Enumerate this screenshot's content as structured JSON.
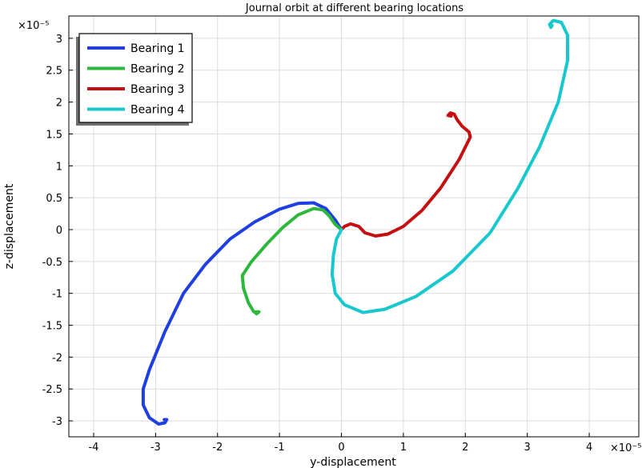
{
  "chart_data": {
    "type": "line",
    "title": "Journal orbit at different bearing locations",
    "xlabel": "y-displacement",
    "ylabel": "z-displacement",
    "x_multiplier": "×10⁻⁵",
    "y_multiplier": "×10⁻⁵",
    "xlim": [
      -4.4,
      4.8
    ],
    "ylim": [
      -3.25,
      3.35
    ],
    "x_ticks": [
      -4,
      -3,
      -2,
      -1,
      0,
      1,
      2,
      3,
      4
    ],
    "x_tick_labels": [
      "-4",
      "-3",
      "-2",
      "-1",
      "0",
      "1",
      "2",
      "3",
      "4"
    ],
    "y_ticks": [
      3,
      2.5,
      2,
      1.5,
      1,
      0.5,
      0,
      -0.5,
      -1,
      -1.5,
      -2,
      -2.5,
      -3
    ],
    "y_tick_labels": [
      "3",
      "2.5",
      "2",
      "1.5",
      "1",
      "0.5",
      "0",
      "-0.5",
      "-1",
      "-1.5",
      "-2",
      "-2.5",
      "-3"
    ],
    "grid": true,
    "legend_position": "top-left",
    "series": [
      {
        "name": "Bearing 1",
        "color": "#1f3fe0",
        "points": [
          [
            0,
            0
          ],
          [
            -0.1,
            0.15
          ],
          [
            -0.25,
            0.33
          ],
          [
            -0.45,
            0.42
          ],
          [
            -0.7,
            0.41
          ],
          [
            -1.0,
            0.32
          ],
          [
            -1.4,
            0.12
          ],
          [
            -1.8,
            -0.15
          ],
          [
            -2.2,
            -0.55
          ],
          [
            -2.55,
            -1.0
          ],
          [
            -2.85,
            -1.6
          ],
          [
            -3.1,
            -2.2
          ],
          [
            -3.2,
            -2.5
          ],
          [
            -3.2,
            -2.75
          ],
          [
            -3.1,
            -2.95
          ],
          [
            -2.95,
            -3.05
          ],
          [
            -2.85,
            -3.03
          ],
          [
            -2.82,
            -2.98
          ],
          [
            -2.86,
            -2.98
          ]
        ]
      },
      {
        "name": "Bearing 2",
        "color": "#2db83d",
        "points": [
          [
            0,
            0
          ],
          [
            -0.1,
            0.08
          ],
          [
            -0.2,
            0.22
          ],
          [
            -0.3,
            0.31
          ],
          [
            -0.45,
            0.33
          ],
          [
            -0.7,
            0.23
          ],
          [
            -0.95,
            0.03
          ],
          [
            -1.2,
            -0.22
          ],
          [
            -1.45,
            -0.5
          ],
          [
            -1.6,
            -0.72
          ],
          [
            -1.58,
            -0.92
          ],
          [
            -1.5,
            -1.15
          ],
          [
            -1.42,
            -1.28
          ],
          [
            -1.37,
            -1.32
          ],
          [
            -1.33,
            -1.29
          ],
          [
            -1.37,
            -1.29
          ]
        ]
      },
      {
        "name": "Bearing 3",
        "color": "#c41010",
        "points": [
          [
            0,
            0
          ],
          [
            0.05,
            0.05
          ],
          [
            0.15,
            0.09
          ],
          [
            0.28,
            0.05
          ],
          [
            0.38,
            -0.05
          ],
          [
            0.55,
            -0.1
          ],
          [
            0.75,
            -0.07
          ],
          [
            1.0,
            0.05
          ],
          [
            1.3,
            0.3
          ],
          [
            1.6,
            0.65
          ],
          [
            1.9,
            1.1
          ],
          [
            2.08,
            1.45
          ],
          [
            2.06,
            1.53
          ],
          [
            1.95,
            1.62
          ],
          [
            1.87,
            1.72
          ],
          [
            1.82,
            1.81
          ],
          [
            1.76,
            1.83
          ],
          [
            1.72,
            1.79
          ],
          [
            1.77,
            1.78
          ]
        ]
      },
      {
        "name": "Bearing 4",
        "color": "#19c8cc",
        "points": [
          [
            0,
            0
          ],
          [
            -0.08,
            -0.15
          ],
          [
            -0.13,
            -0.4
          ],
          [
            -0.15,
            -0.7
          ],
          [
            -0.1,
            -1.0
          ],
          [
            0.05,
            -1.18
          ],
          [
            0.35,
            -1.3
          ],
          [
            0.7,
            -1.25
          ],
          [
            1.2,
            -1.05
          ],
          [
            1.8,
            -0.65
          ],
          [
            2.4,
            -0.05
          ],
          [
            2.85,
            0.65
          ],
          [
            3.2,
            1.3
          ],
          [
            3.5,
            2.0
          ],
          [
            3.65,
            2.65
          ],
          [
            3.65,
            3.05
          ],
          [
            3.55,
            3.25
          ],
          [
            3.42,
            3.28
          ],
          [
            3.36,
            3.22
          ],
          [
            3.38,
            3.17
          ],
          [
            3.4,
            3.2
          ]
        ]
      }
    ]
  }
}
